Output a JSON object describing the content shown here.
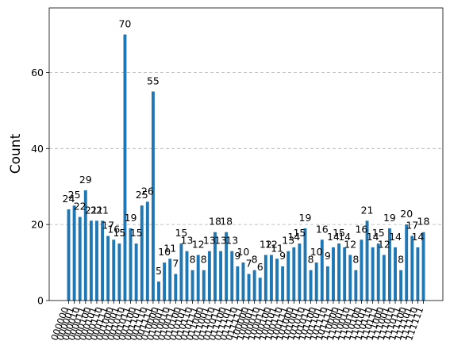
{
  "chart_data": {
    "type": "bar",
    "title": "",
    "xlabel": "",
    "ylabel": "Count",
    "ylim": [
      0,
      77
    ],
    "yticks": [
      0,
      20,
      40,
      60
    ],
    "grid": "y-dashed",
    "bar_color": "#1f77b4",
    "grid_color": "#b0b0b0",
    "categories": [
      "000000",
      "000001",
      "000010",
      "000011",
      "000100",
      "000101",
      "000110",
      "000111",
      "001000",
      "001001",
      "001010",
      "001011",
      "001100",
      "001101",
      "001110",
      "001111",
      "010000",
      "010001",
      "010010",
      "010011",
      "010100",
      "010101",
      "010110",
      "010111",
      "011000",
      "011001",
      "011010",
      "011011",
      "011100",
      "011101",
      "011110",
      "011111",
      "100000",
      "100001",
      "100010",
      "100011",
      "100100",
      "100101",
      "100110",
      "100111",
      "101000",
      "101001",
      "101010",
      "101011",
      "101100",
      "101101",
      "101110",
      "101111",
      "110000",
      "110001",
      "110010",
      "110011",
      "110100",
      "110101",
      "110110",
      "110111",
      "111000",
      "111001",
      "111010",
      "111011",
      "111100",
      "111101",
      "111110",
      "111111"
    ],
    "values": [
      24,
      25,
      22,
      29,
      21,
      21,
      21,
      17,
      16,
      15,
      70,
      19,
      15,
      25,
      26,
      55,
      5,
      10,
      11,
      7,
      15,
      13,
      8,
      12,
      8,
      13,
      18,
      13,
      18,
      13,
      9,
      10,
      7,
      8,
      6,
      12,
      12,
      11,
      9,
      13,
      14,
      15,
      19,
      8,
      10,
      16,
      9,
      14,
      15,
      14,
      12,
      8,
      16,
      21,
      14,
      15,
      12,
      19,
      14,
      8,
      20,
      17,
      14,
      18
    ]
  }
}
